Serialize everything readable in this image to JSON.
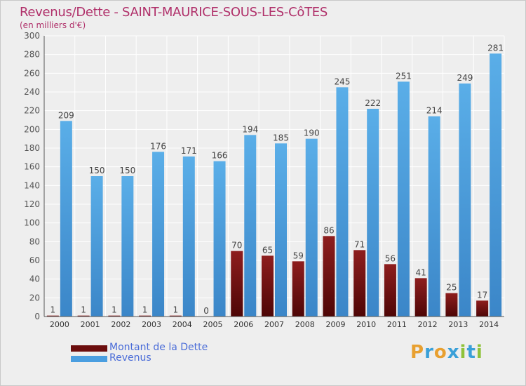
{
  "chart_data": {
    "type": "bar",
    "title": "Revenus/Dette - SAINT-MAURICE-SOUS-LES-CôTES",
    "subtitle": "(en milliers d'€)",
    "categories": [
      "2000",
      "2001",
      "2002",
      "2003",
      "2004",
      "2005",
      "2006",
      "2007",
      "2008",
      "2009",
      "2010",
      "2011",
      "2012",
      "2013",
      "2014"
    ],
    "series": [
      {
        "name": "Montant de la Dette",
        "color": "#6b0d0d",
        "values": [
          1,
          1,
          1,
          1,
          1,
          0,
          70,
          65,
          59,
          86,
          71,
          56,
          41,
          25,
          17
        ]
      },
      {
        "name": "Revenus",
        "color": "#4a9ee0",
        "values": [
          209,
          150,
          150,
          176,
          171,
          166,
          194,
          185,
          190,
          245,
          222,
          251,
          214,
          249,
          281
        ]
      }
    ],
    "ylim": [
      0,
      300
    ],
    "yticks": [
      0,
      20,
      40,
      60,
      80,
      100,
      120,
      140,
      160,
      180,
      200,
      220,
      240,
      260,
      280,
      300
    ],
    "grid": true,
    "legend_position": "bottom-left",
    "xlabel": "",
    "ylabel": ""
  },
  "logo": {
    "letters": [
      "P",
      "r",
      "o",
      "x",
      "i",
      "t",
      "i"
    ],
    "colors": [
      "#e8a030",
      "#3aa0d8",
      "#e8a030",
      "#3aa0d8",
      "#8fc23a",
      "#3aa0d8",
      "#8fc23a"
    ]
  }
}
